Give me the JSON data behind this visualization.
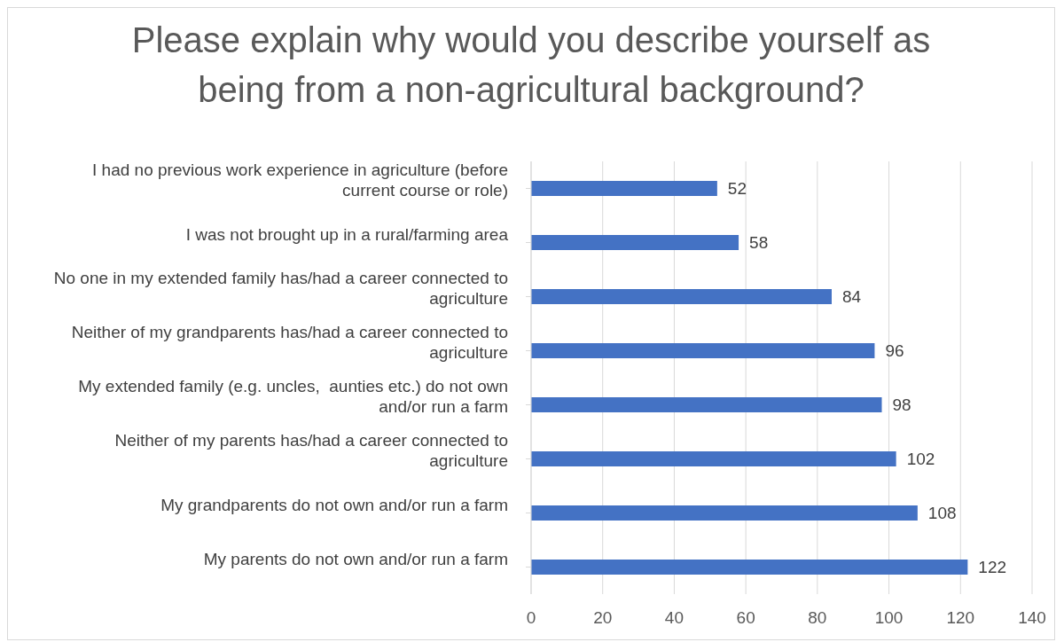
{
  "chart_data": {
    "type": "bar",
    "orientation": "horizontal",
    "title": "Please explain why would you describe yourself as being from a non-agricultural background?",
    "categories": [
      "I had no previous work experience in agriculture (before current course or role)",
      "I was not brought up in a rural/farming area",
      "No one in my extended family has/had a career connected to agriculture",
      "Neither of my grandparents has/had a career connected to agriculture",
      "My extended family (e.g. uncles,  aunties etc.) do not own and/or run a farm",
      "Neither of my parents has/had a career connected to agriculture",
      "My grandparents do not own and/or run a farm",
      "My parents do not own and/or run a farm"
    ],
    "values": [
      52,
      58,
      84,
      96,
      98,
      102,
      108,
      122
    ],
    "color": "#4472c4",
    "xlim": [
      0,
      140
    ],
    "xticks": [
      0,
      20,
      40,
      60,
      80,
      100,
      120,
      140
    ],
    "grid": "x",
    "data_labels": true
  }
}
